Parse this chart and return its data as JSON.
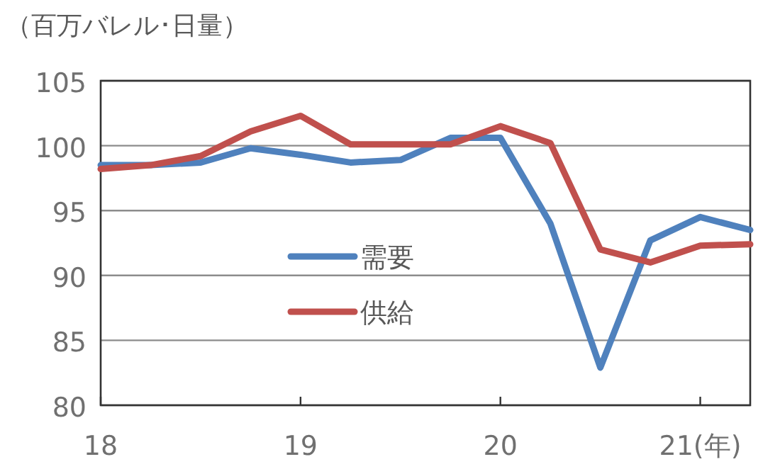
{
  "chart_data": {
    "type": "line",
    "ylabel": "（百万バレル･日量）",
    "x": [
      18,
      18.25,
      18.5,
      18.75,
      19,
      19.25,
      19.5,
      19.75,
      20,
      20.25,
      20.5,
      20.75,
      21,
      21.25
    ],
    "series": [
      {
        "name": "需要",
        "color": "#4f81bd",
        "values": [
          98.5,
          98.5,
          98.7,
          99.8,
          99.3,
          98.7,
          98.9,
          100.6,
          100.6,
          94,
          82.9,
          92.7,
          94.5,
          93.5
        ]
      },
      {
        "name": "供給",
        "color": "#c0504d",
        "values": [
          98.2,
          98.5,
          99.2,
          101.1,
          102.3,
          100.1,
          100.1,
          100.1,
          101.5,
          100.2,
          92.0,
          91.0,
          92.3,
          92.4
        ]
      }
    ],
    "xlim": [
      18,
      21.25
    ],
    "ylim": [
      80,
      105
    ],
    "xticks": [
      18,
      19,
      20,
      {
        "value": 21,
        "label": "21(年)"
      }
    ],
    "yticks": [
      80,
      85,
      90,
      95,
      100,
      105
    ],
    "grid": "y",
    "legend": "left",
    "marker": "none",
    "line_style": "solid"
  }
}
